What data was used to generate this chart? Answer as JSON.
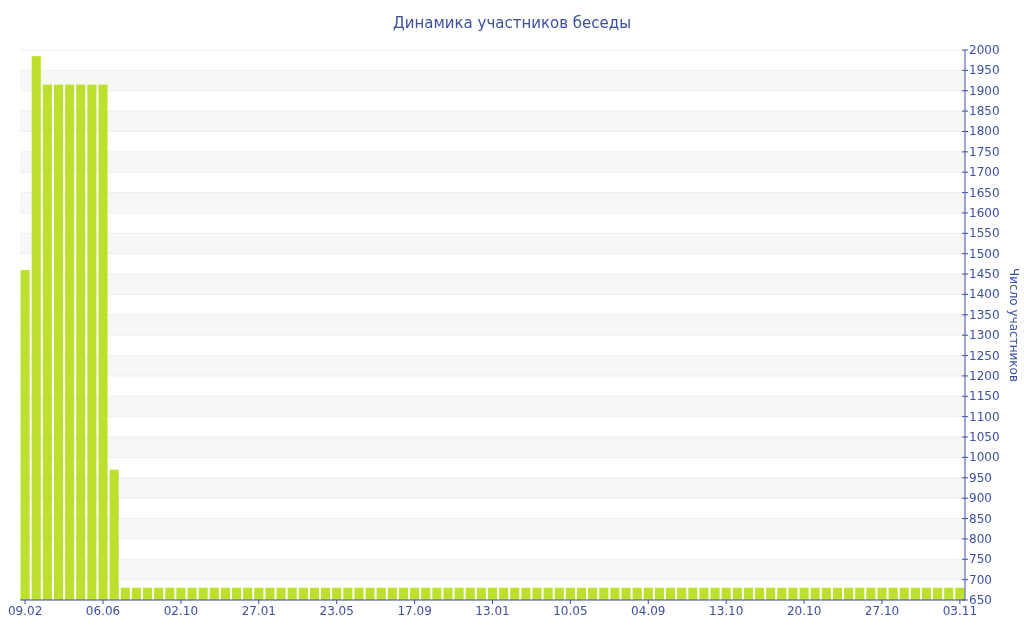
{
  "chart_data": {
    "type": "bar",
    "title": "Динамика участников беседы",
    "ylabel": "Число участников",
    "categories": [
      "09.02",
      null,
      null,
      null,
      null,
      null,
      null,
      "06.06",
      null,
      null,
      null,
      null,
      null,
      null,
      "02.10",
      null,
      null,
      null,
      null,
      null,
      null,
      "27.01",
      null,
      null,
      null,
      null,
      null,
      null,
      "23.05",
      null,
      null,
      null,
      null,
      null,
      null,
      "17.09",
      null,
      null,
      null,
      null,
      null,
      null,
      "13.01",
      null,
      null,
      null,
      null,
      null,
      null,
      "10.05",
      null,
      null,
      null,
      null,
      null,
      null,
      "04.09",
      null,
      null,
      null,
      null,
      null,
      null,
      "13.10",
      null,
      null,
      null,
      null,
      null,
      null,
      "20.10",
      null,
      null,
      null,
      null,
      null,
      null,
      "27.10",
      null,
      null,
      null,
      null,
      null,
      null,
      "03.11"
    ],
    "values": [
      1460,
      1985,
      1915,
      1915,
      1915,
      1915,
      1915,
      1915,
      970,
      680,
      680,
      680,
      680,
      680,
      680,
      680,
      680,
      680,
      680,
      680,
      680,
      680,
      680,
      680,
      680,
      680,
      680,
      680,
      680,
      680,
      680,
      680,
      680,
      680,
      680,
      680,
      680,
      680,
      680,
      680,
      680,
      680,
      680,
      680,
      680,
      680,
      680,
      680,
      680,
      680,
      680,
      680,
      680,
      680,
      680,
      680,
      680,
      680,
      680,
      680,
      680,
      680,
      680,
      680,
      680,
      680,
      680,
      680,
      680,
      680,
      680,
      680,
      680,
      680,
      680,
      680,
      680,
      680,
      680,
      680,
      680,
      680,
      680,
      680,
      680
    ],
    "color": "#bde02e",
    "ylim": [
      650,
      2000
    ],
    "yticks": [
      650,
      700,
      750,
      800,
      850,
      900,
      950,
      1000,
      1050,
      1100,
      1150,
      1200,
      1250,
      1300,
      1350,
      1400,
      1450,
      1500,
      1550,
      1600,
      1650,
      1700,
      1750,
      1800,
      1850,
      1900,
      1950,
      2000
    ],
    "grid": "y"
  }
}
